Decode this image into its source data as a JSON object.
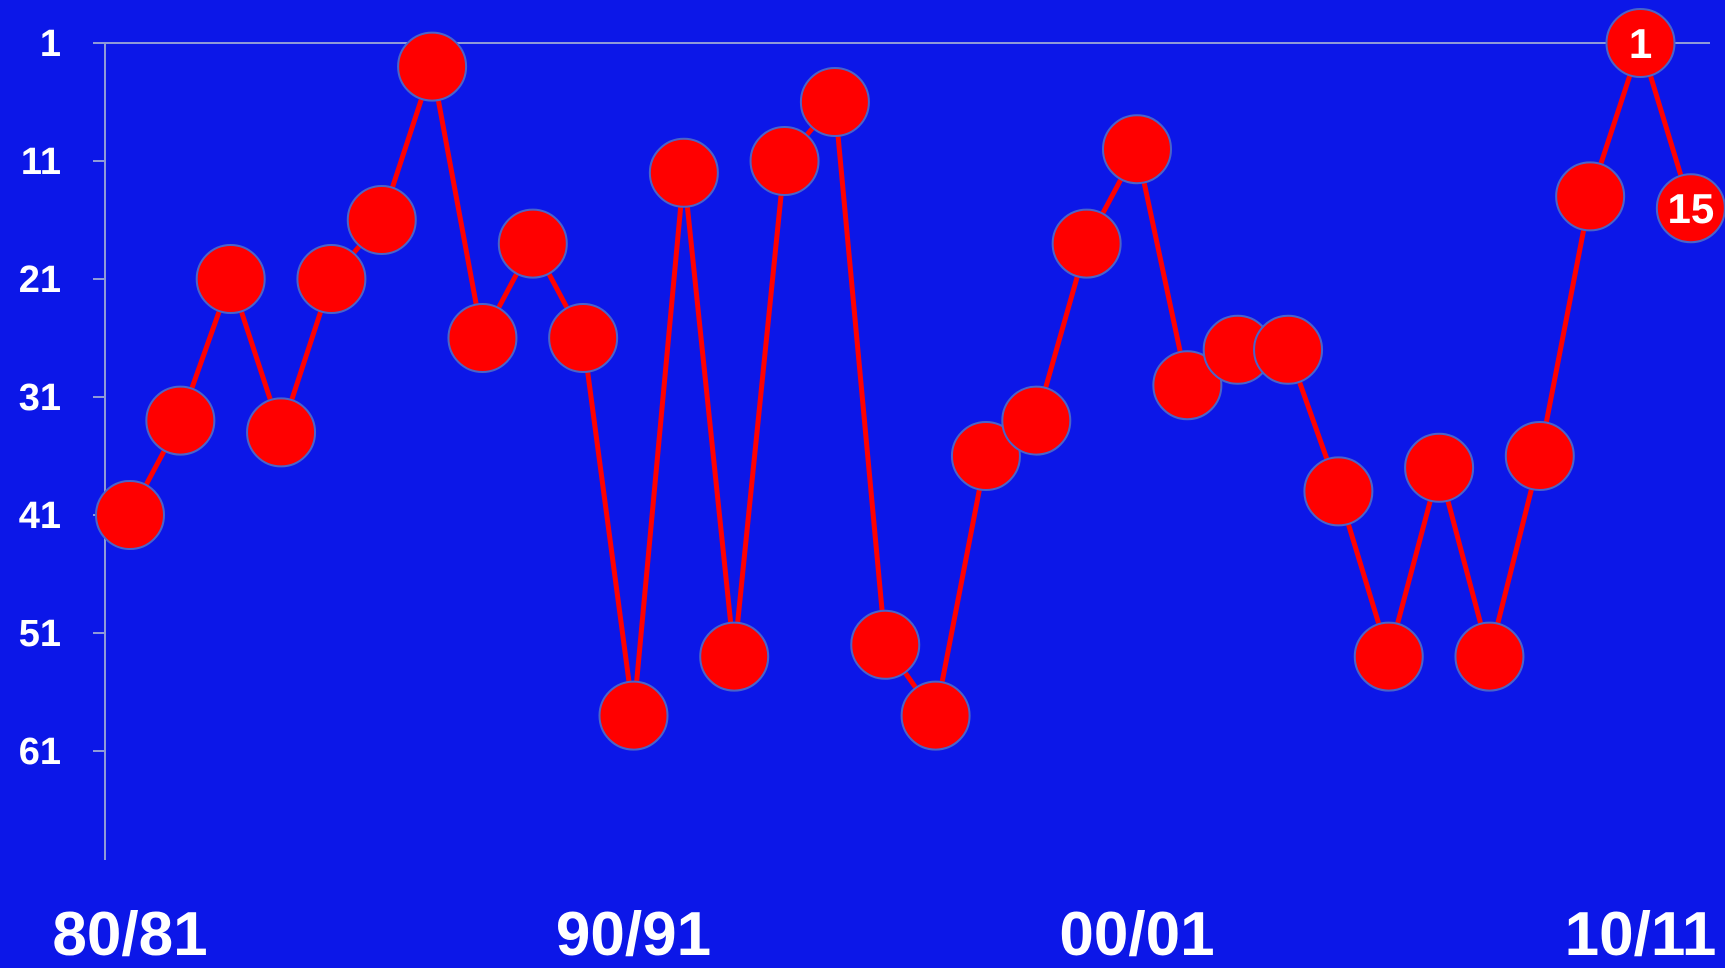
{
  "colors": {
    "background": "#0c17e8",
    "axis": "#8f9ad8",
    "line": "#ff0000",
    "marker": "#ff0000",
    "marker_outline": "#4a64c8",
    "text": "#ffffff"
  },
  "chart_data": {
    "type": "line",
    "title": "",
    "xlabel": "",
    "ylabel": "",
    "y_inverted": true,
    "ylim": [
      1,
      70
    ],
    "y_ticks": [
      1,
      11,
      21,
      31,
      41,
      51,
      61
    ],
    "y_tick_labels": [
      "1",
      "11",
      "21",
      "31",
      "41",
      "51",
      "61"
    ],
    "x_tick_labels": [
      {
        "index": 0,
        "label": "80/81"
      },
      {
        "index": 10,
        "label": "90/91"
      },
      {
        "index": 20,
        "label": "00/01"
      },
      {
        "index": 30,
        "label": "10/11"
      }
    ],
    "grid": false,
    "x": [
      "80/81",
      "81/82",
      "82/83",
      "83/84",
      "84/85",
      "85/86",
      "86/87",
      "87/88",
      "88/89",
      "89/90",
      "90/91",
      "91/92",
      "92/93",
      "93/94",
      "94/95",
      "95/96",
      "96/97",
      "97/98",
      "98/99",
      "99/00",
      "00/01",
      "01/02",
      "02/03",
      "03/04",
      "04/05",
      "05/06",
      "06/07",
      "07/08",
      "08/09",
      "09/10",
      "10/11",
      "11/12"
    ],
    "series": [
      {
        "values": [
          41,
          33,
          21,
          34,
          21,
          16,
          3,
          26,
          18,
          26,
          58,
          12,
          53,
          11,
          6,
          52,
          58,
          36,
          33,
          18,
          10,
          30,
          27,
          27,
          39,
          53,
          37,
          53,
          36,
          14,
          1,
          15
        ]
      }
    ],
    "data_labels": [
      {
        "index": 30,
        "text": "1"
      },
      {
        "index": 31,
        "text": "15"
      }
    ]
  }
}
